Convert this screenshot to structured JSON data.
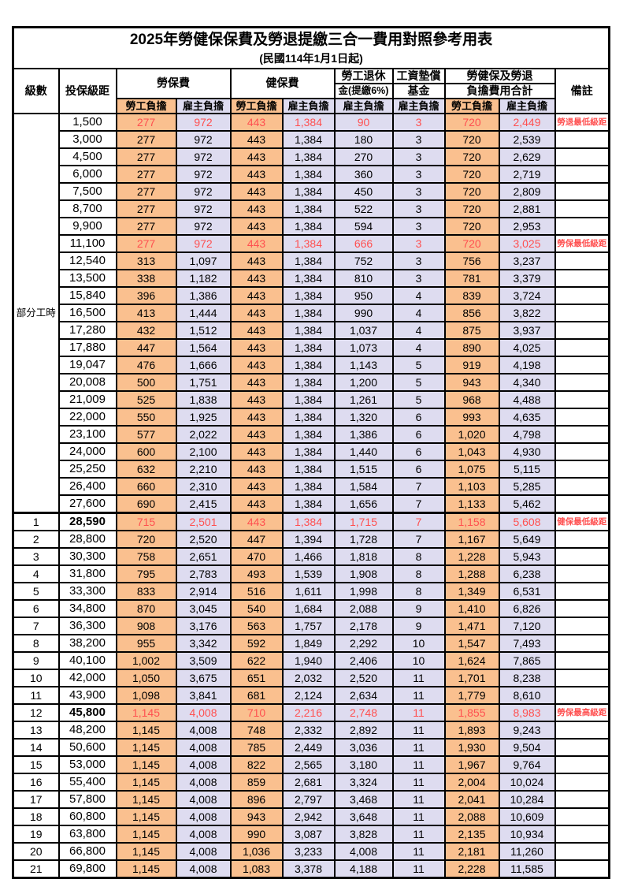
{
  "table": {
    "title": "2025年勞健保保費及勞退提繳三合一費用對照參考用表",
    "subtitle": "(民國114年1月1日起)",
    "headers": {
      "level": "級數",
      "bracket": "投保級距",
      "labor": "勞保費",
      "health": "健保費",
      "pension_line1": "勞工退休",
      "pension_line2": "金(提繳6%)",
      "fund_line1": "工資墊償",
      "fund_line2": "基金",
      "total_line1": "勞健保及勞退",
      "total_line2": "負擔費用合計",
      "note": "備註",
      "employee": "勞工負擔",
      "employer": "雇主負擔"
    },
    "group_label": "部分工時",
    "colors": {
      "employee_bg": "#FAC08F",
      "employer_bg": "#DEDCF0",
      "highlight_red": "#FF5050"
    },
    "rows": [
      {
        "level": "",
        "bracket": "1,500",
        "values": [
          "277",
          "972",
          "443",
          "1,384",
          "90",
          "3",
          "720",
          "2,449"
        ],
        "note": "勞退最低級距",
        "highlight": true,
        "group_span": 23
      },
      {
        "level": "",
        "bracket": "3,000",
        "values": [
          "277",
          "972",
          "443",
          "1,384",
          "180",
          "3",
          "720",
          "2,539"
        ],
        "note": "",
        "in_group": true
      },
      {
        "level": "",
        "bracket": "4,500",
        "values": [
          "277",
          "972",
          "443",
          "1,384",
          "270",
          "3",
          "720",
          "2,629"
        ],
        "note": "",
        "in_group": true
      },
      {
        "level": "",
        "bracket": "6,000",
        "values": [
          "277",
          "972",
          "443",
          "1,384",
          "360",
          "3",
          "720",
          "2,719"
        ],
        "note": "",
        "in_group": true
      },
      {
        "level": "",
        "bracket": "7,500",
        "values": [
          "277",
          "972",
          "443",
          "1,384",
          "450",
          "3",
          "720",
          "2,809"
        ],
        "note": "",
        "in_group": true
      },
      {
        "level": "",
        "bracket": "8,700",
        "values": [
          "277",
          "972",
          "443",
          "1,384",
          "522",
          "3",
          "720",
          "2,881"
        ],
        "note": "",
        "in_group": true
      },
      {
        "level": "",
        "bracket": "9,900",
        "values": [
          "277",
          "972",
          "443",
          "1,384",
          "594",
          "3",
          "720",
          "2,953"
        ],
        "note": "",
        "in_group": true
      },
      {
        "level": "",
        "bracket": "11,100",
        "values": [
          "277",
          "972",
          "443",
          "1,384",
          "666",
          "3",
          "720",
          "3,025"
        ],
        "note": "勞保最低級距",
        "highlight": true,
        "in_group": true
      },
      {
        "level": "",
        "bracket": "12,540",
        "values": [
          "313",
          "1,097",
          "443",
          "1,384",
          "752",
          "3",
          "756",
          "3,237"
        ],
        "note": "",
        "in_group": true
      },
      {
        "level": "",
        "bracket": "13,500",
        "values": [
          "338",
          "1,182",
          "443",
          "1,384",
          "810",
          "3",
          "781",
          "3,379"
        ],
        "note": "",
        "in_group": true
      },
      {
        "level": "",
        "bracket": "15,840",
        "values": [
          "396",
          "1,386",
          "443",
          "1,384",
          "950",
          "4",
          "839",
          "3,724"
        ],
        "note": "",
        "in_group": true
      },
      {
        "level": "",
        "bracket": "16,500",
        "values": [
          "413",
          "1,444",
          "443",
          "1,384",
          "990",
          "4",
          "856",
          "3,822"
        ],
        "note": "",
        "in_group": true
      },
      {
        "level": "",
        "bracket": "17,280",
        "values": [
          "432",
          "1,512",
          "443",
          "1,384",
          "1,037",
          "4",
          "875",
          "3,937"
        ],
        "note": "",
        "in_group": true
      },
      {
        "level": "",
        "bracket": "17,880",
        "values": [
          "447",
          "1,564",
          "443",
          "1,384",
          "1,073",
          "4",
          "890",
          "4,025"
        ],
        "note": "",
        "in_group": true
      },
      {
        "level": "",
        "bracket": "19,047",
        "values": [
          "476",
          "1,666",
          "443",
          "1,384",
          "1,143",
          "5",
          "919",
          "4,198"
        ],
        "note": "",
        "in_group": true
      },
      {
        "level": "",
        "bracket": "20,008",
        "values": [
          "500",
          "1,751",
          "443",
          "1,384",
          "1,200",
          "5",
          "943",
          "4,340"
        ],
        "note": "",
        "in_group": true
      },
      {
        "level": "",
        "bracket": "21,009",
        "values": [
          "525",
          "1,838",
          "443",
          "1,384",
          "1,261",
          "5",
          "968",
          "4,488"
        ],
        "note": "",
        "in_group": true
      },
      {
        "level": "",
        "bracket": "22,000",
        "values": [
          "550",
          "1,925",
          "443",
          "1,384",
          "1,320",
          "6",
          "993",
          "4,635"
        ],
        "note": "",
        "in_group": true
      },
      {
        "level": "",
        "bracket": "23,100",
        "values": [
          "577",
          "2,022",
          "443",
          "1,384",
          "1,386",
          "6",
          "1,020",
          "4,798"
        ],
        "note": "",
        "in_group": true
      },
      {
        "level": "",
        "bracket": "24,000",
        "values": [
          "600",
          "2,100",
          "443",
          "1,384",
          "1,440",
          "6",
          "1,043",
          "4,930"
        ],
        "note": "",
        "in_group": true
      },
      {
        "level": "",
        "bracket": "25,250",
        "values": [
          "632",
          "2,210",
          "443",
          "1,384",
          "1,515",
          "6",
          "1,075",
          "5,115"
        ],
        "note": "",
        "in_group": true
      },
      {
        "level": "",
        "bracket": "26,400",
        "values": [
          "660",
          "2,310",
          "443",
          "1,384",
          "1,584",
          "7",
          "1,103",
          "5,285"
        ],
        "note": "",
        "in_group": true
      },
      {
        "level": "",
        "bracket": "27,600",
        "values": [
          "690",
          "2,415",
          "443",
          "1,384",
          "1,656",
          "7",
          "1,133",
          "5,462"
        ],
        "note": "",
        "in_group": true
      },
      {
        "level": "1",
        "bracket": "28,590",
        "values": [
          "715",
          "2,501",
          "443",
          "1,384",
          "1,715",
          "7",
          "1,158",
          "5,608"
        ],
        "note": "健保最低級距",
        "highlight": true,
        "section_start": true,
        "bold_bracket": true
      },
      {
        "level": "2",
        "bracket": "28,800",
        "values": [
          "720",
          "2,520",
          "447",
          "1,394",
          "1,728",
          "7",
          "1,167",
          "5,649"
        ],
        "note": ""
      },
      {
        "level": "3",
        "bracket": "30,300",
        "values": [
          "758",
          "2,651",
          "470",
          "1,466",
          "1,818",
          "8",
          "1,228",
          "5,943"
        ],
        "note": ""
      },
      {
        "level": "4",
        "bracket": "31,800",
        "values": [
          "795",
          "2,783",
          "493",
          "1,539",
          "1,908",
          "8",
          "1,288",
          "6,238"
        ],
        "note": ""
      },
      {
        "level": "5",
        "bracket": "33,300",
        "values": [
          "833",
          "2,914",
          "516",
          "1,611",
          "1,998",
          "8",
          "1,349",
          "6,531"
        ],
        "note": ""
      },
      {
        "level": "6",
        "bracket": "34,800",
        "values": [
          "870",
          "3,045",
          "540",
          "1,684",
          "2,088",
          "9",
          "1,410",
          "6,826"
        ],
        "note": ""
      },
      {
        "level": "7",
        "bracket": "36,300",
        "values": [
          "908",
          "3,176",
          "563",
          "1,757",
          "2,178",
          "9",
          "1,471",
          "7,120"
        ],
        "note": ""
      },
      {
        "level": "8",
        "bracket": "38,200",
        "values": [
          "955",
          "3,342",
          "592",
          "1,849",
          "2,292",
          "10",
          "1,547",
          "7,493"
        ],
        "note": ""
      },
      {
        "level": "9",
        "bracket": "40,100",
        "values": [
          "1,002",
          "3,509",
          "622",
          "1,940",
          "2,406",
          "10",
          "1,624",
          "7,865"
        ],
        "note": ""
      },
      {
        "level": "10",
        "bracket": "42,000",
        "values": [
          "1,050",
          "3,675",
          "651",
          "2,032",
          "2,520",
          "11",
          "1,701",
          "8,238"
        ],
        "note": ""
      },
      {
        "level": "11",
        "bracket": "43,900",
        "values": [
          "1,098",
          "3,841",
          "681",
          "2,124",
          "2,634",
          "11",
          "1,779",
          "8,610"
        ],
        "note": ""
      },
      {
        "level": "12",
        "bracket": "45,800",
        "values": [
          "1,145",
          "4,008",
          "710",
          "2,216",
          "2,748",
          "11",
          "1,855",
          "8,983"
        ],
        "note": "勞保最高級距",
        "highlight": true,
        "bold_bracket": true
      },
      {
        "level": "13",
        "bracket": "48,200",
        "values": [
          "1,145",
          "4,008",
          "748",
          "2,332",
          "2,892",
          "11",
          "1,893",
          "9,243"
        ],
        "note": ""
      },
      {
        "level": "14",
        "bracket": "50,600",
        "values": [
          "1,145",
          "4,008",
          "785",
          "2,449",
          "3,036",
          "11",
          "1,930",
          "9,504"
        ],
        "note": ""
      },
      {
        "level": "15",
        "bracket": "53,000",
        "values": [
          "1,145",
          "4,008",
          "822",
          "2,565",
          "3,180",
          "11",
          "1,967",
          "9,764"
        ],
        "note": ""
      },
      {
        "level": "16",
        "bracket": "55,400",
        "values": [
          "1,145",
          "4,008",
          "859",
          "2,681",
          "3,324",
          "11",
          "2,004",
          "10,024"
        ],
        "note": ""
      },
      {
        "level": "17",
        "bracket": "57,800",
        "values": [
          "1,145",
          "4,008",
          "896",
          "2,797",
          "3,468",
          "11",
          "2,041",
          "10,284"
        ],
        "note": ""
      },
      {
        "level": "18",
        "bracket": "60,800",
        "values": [
          "1,145",
          "4,008",
          "943",
          "2,942",
          "3,648",
          "11",
          "2,088",
          "10,609"
        ],
        "note": ""
      },
      {
        "level": "19",
        "bracket": "63,800",
        "values": [
          "1,145",
          "4,008",
          "990",
          "3,087",
          "3,828",
          "11",
          "2,135",
          "10,934"
        ],
        "note": ""
      },
      {
        "level": "20",
        "bracket": "66,800",
        "values": [
          "1,145",
          "4,008",
          "1,036",
          "3,233",
          "4,008",
          "11",
          "2,181",
          "11,260"
        ],
        "note": ""
      },
      {
        "level": "21",
        "bracket": "69,800",
        "values": [
          "1,145",
          "4,008",
          "1,083",
          "3,378",
          "4,188",
          "11",
          "2,228",
          "11,585"
        ],
        "note": ""
      }
    ]
  }
}
